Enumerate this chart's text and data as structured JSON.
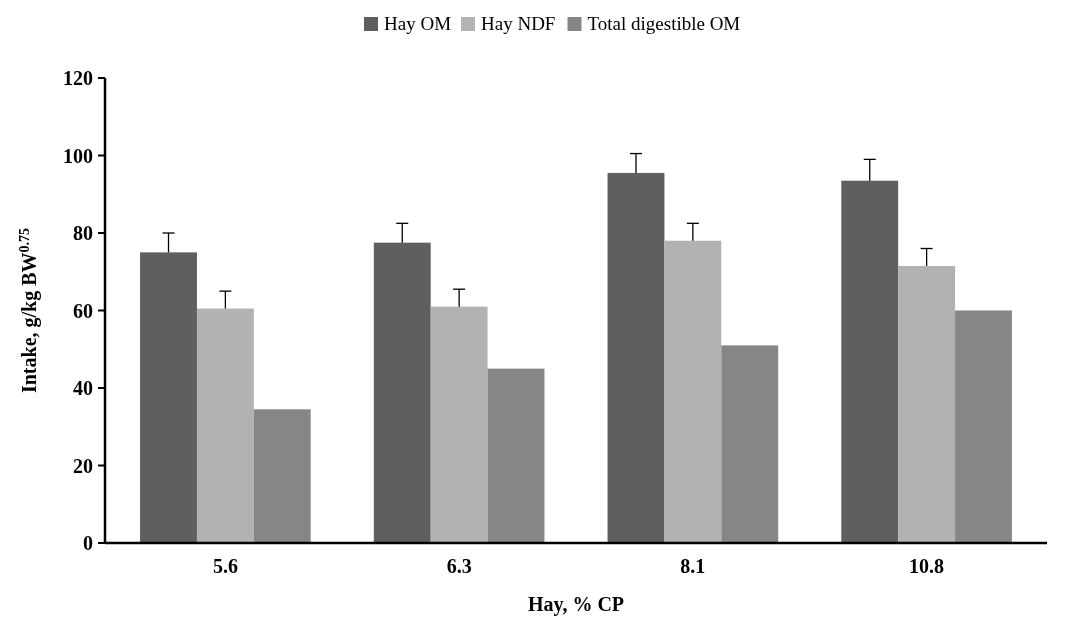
{
  "chart_data": {
    "type": "bar",
    "xlabel": "Hay, % CP",
    "ylabel": "Intake, g/kg BW$^{0.75}$",
    "categories": [
      "5.6",
      "6.3",
      "8.1",
      "10.8"
    ],
    "series": [
      {
        "name": "Hay OM",
        "color": "#5f5f5f",
        "values": [
          75,
          77.5,
          95.5,
          93.5
        ],
        "errors": [
          [
            75,
            80
          ],
          [
            77.5,
            82.5
          ],
          [
            95.5,
            100.5
          ],
          [
            93.5,
            99
          ]
        ]
      },
      {
        "name": "Hay NDF",
        "color": "#b2b2b2",
        "values": [
          60.5,
          61,
          78,
          71.5
        ],
        "errors": [
          [
            60.5,
            65
          ],
          [
            61,
            65.5
          ],
          [
            78,
            82.5
          ],
          [
            71.5,
            76
          ]
        ]
      },
      {
        "name": "Total digestible OM",
        "color": "#868686",
        "values": [
          34.5,
          45,
          51,
          60
        ]
      }
    ],
    "ylim": [
      0,
      120
    ],
    "yticks": [
      0,
      20,
      40,
      60,
      80,
      100,
      120
    ],
    "grid": false,
    "legend": "top"
  }
}
